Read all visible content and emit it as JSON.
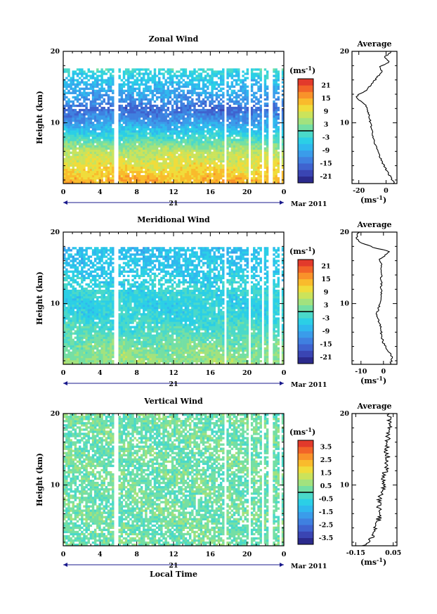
{
  "figure": {
    "common_xlabel": "Local Time",
    "month_label": "Mar 2011",
    "day_label": "21",
    "yunit": "(ms",
    "yunit_exp": "-1",
    "yunit_close": ")"
  },
  "chart_data": [
    {
      "type": "heatmap",
      "title": "Zonal Wind",
      "ylabel": "Height (km)",
      "xlabel": "Local Time",
      "x_ticks": [
        "0",
        "4",
        "8",
        "12",
        "16",
        "20",
        "0"
      ],
      "x_range_hours": [
        0,
        24
      ],
      "y_ticks": [
        "10",
        "20"
      ],
      "y_range_km": [
        1.5,
        20
      ],
      "colorbar_unit": "(ms-1)",
      "colorbar_ticks": [
        "21",
        "15",
        "9",
        "3",
        "-3",
        "-9",
        "-15",
        "-21"
      ],
      "colorbar_range": [
        -24,
        24
      ],
      "data_top_km": 17.5,
      "profile": [
        [
          2,
          14
        ],
        [
          4,
          10
        ],
        [
          6,
          6
        ],
        [
          8,
          -2
        ],
        [
          10,
          -10
        ],
        [
          12,
          -16
        ],
        [
          13,
          -12
        ],
        [
          15,
          -8
        ],
        [
          17,
          -4
        ],
        [
          18,
          0
        ]
      ],
      "gap_hours": [
        5.8,
        17.6,
        20.3,
        21.7,
        22.6,
        23.6
      ],
      "average_panel": {
        "title": "Average",
        "x_ticks": [
          "-20",
          "0"
        ],
        "x_range": [
          -25,
          8
        ],
        "y_ticks": [
          "10",
          "20"
        ],
        "xlabel": "(ms-1)",
        "profile": [
          [
            1.5,
            6
          ],
          [
            2.5,
            3
          ],
          [
            3.5,
            0
          ],
          [
            4.5,
            -3
          ],
          [
            5.5,
            -5
          ],
          [
            6.5,
            -7
          ],
          [
            7.5,
            -9
          ],
          [
            8.5,
            -10
          ],
          [
            9.5,
            -11
          ],
          [
            10.5,
            -12
          ],
          [
            11.5,
            -13
          ],
          [
            12.5,
            -15
          ],
          [
            13,
            -18
          ],
          [
            13.5,
            -22
          ],
          [
            14,
            -20
          ],
          [
            14.5,
            -15
          ],
          [
            15.5,
            -10
          ],
          [
            16.5,
            -6
          ],
          [
            17.2,
            -3
          ],
          [
            17.8,
            -5
          ],
          [
            18.5,
            2
          ],
          [
            19.2,
            -1
          ],
          [
            20,
            4
          ]
        ]
      }
    },
    {
      "type": "heatmap",
      "title": "Meridional Wind",
      "ylabel": "Height (km)",
      "xlabel": "Local Time",
      "x_ticks": [
        "0",
        "4",
        "8",
        "12",
        "16",
        "20",
        "0"
      ],
      "x_range_hours": [
        0,
        24
      ],
      "y_ticks": [
        "10",
        "20"
      ],
      "y_range_km": [
        1.5,
        20
      ],
      "colorbar_unit": "(ms-1)",
      "colorbar_ticks": [
        "21",
        "15",
        "9",
        "3",
        "-3",
        "-9",
        "-15",
        "-21"
      ],
      "colorbar_range": [
        -24,
        24
      ],
      "data_top_km": 18,
      "profile": [
        [
          2,
          4
        ],
        [
          4,
          2
        ],
        [
          6,
          -1
        ],
        [
          8,
          -3
        ],
        [
          10,
          -4
        ],
        [
          12,
          -3
        ],
        [
          14,
          -5
        ],
        [
          16,
          -6
        ],
        [
          18,
          -7
        ]
      ],
      "gap_hours": [
        5.8,
        17.6,
        20.3,
        21.7,
        22.6,
        23.6
      ],
      "average_panel": {
        "title": "Average",
        "x_ticks": [
          "-10",
          "0"
        ],
        "x_range": [
          -14,
          6
        ],
        "y_ticks": [
          "10",
          "20"
        ],
        "xlabel": "(ms-1)",
        "profile": [
          [
            1.5,
            3
          ],
          [
            2.5,
            4
          ],
          [
            3.5,
            2
          ],
          [
            4.5,
            0
          ],
          [
            5.5,
            -1
          ],
          [
            6.5,
            -1
          ],
          [
            7.5,
            -2
          ],
          [
            8.5,
            -3
          ],
          [
            9.5,
            -2
          ],
          [
            10.5,
            -1
          ],
          [
            11.5,
            -1
          ],
          [
            12.5,
            -1
          ],
          [
            13.5,
            -1
          ],
          [
            14.5,
            -1
          ],
          [
            15.5,
            -1
          ],
          [
            16.2,
            -2
          ],
          [
            16.8,
            1
          ],
          [
            17.3,
            3
          ],
          [
            17.8,
            -4
          ],
          [
            18.5,
            -10
          ],
          [
            19.2,
            -12
          ],
          [
            20,
            -11
          ]
        ]
      }
    },
    {
      "type": "heatmap",
      "title": "Vertical Wind",
      "ylabel": "Height (km)",
      "xlabel": "Local Time",
      "x_ticks": [
        "0",
        "4",
        "8",
        "12",
        "16",
        "20",
        "0"
      ],
      "x_range_hours": [
        0,
        24
      ],
      "y_ticks": [
        "10",
        "20"
      ],
      "y_range_km": [
        1.5,
        20
      ],
      "colorbar_unit": "(ms-1)",
      "colorbar_ticks": [
        "3.5",
        "2.5",
        "1.5",
        "0.5",
        "-0.5",
        "-1.5",
        "-2.5",
        "-3.5"
      ],
      "colorbar_range": [
        -4,
        4
      ],
      "data_top_km": 20,
      "profile": [
        [
          2,
          0.2
        ],
        [
          20,
          0.2
        ]
      ],
      "gap_hours": [
        5.8,
        17.6,
        20.3,
        21.7,
        22.6,
        23.6
      ],
      "average_panel": {
        "title": "Average",
        "x_ticks": [
          "-0.15",
          "0.05"
        ],
        "x_range": [
          -0.17,
          0.07
        ],
        "y_ticks": [
          "10",
          "20"
        ],
        "xlabel": "(ms-1)",
        "profile": [
          [
            1.5,
            -0.12
          ],
          [
            2,
            -0.08
          ],
          [
            3,
            -0.06
          ],
          [
            4,
            -0.05
          ],
          [
            5,
            -0.03
          ],
          [
            6,
            -0.02
          ],
          [
            7,
            -0.03
          ],
          [
            8,
            -0.02
          ],
          [
            9,
            -0.01
          ],
          [
            10,
            0.0
          ],
          [
            11,
            0.0
          ],
          [
            12,
            0.01
          ],
          [
            13,
            0.01
          ],
          [
            14,
            0.02
          ],
          [
            15,
            0.01
          ],
          [
            16,
            0.02
          ],
          [
            17,
            0.02
          ],
          [
            18,
            0.03
          ],
          [
            19,
            0.03
          ],
          [
            20,
            0.03
          ]
        ]
      }
    }
  ]
}
